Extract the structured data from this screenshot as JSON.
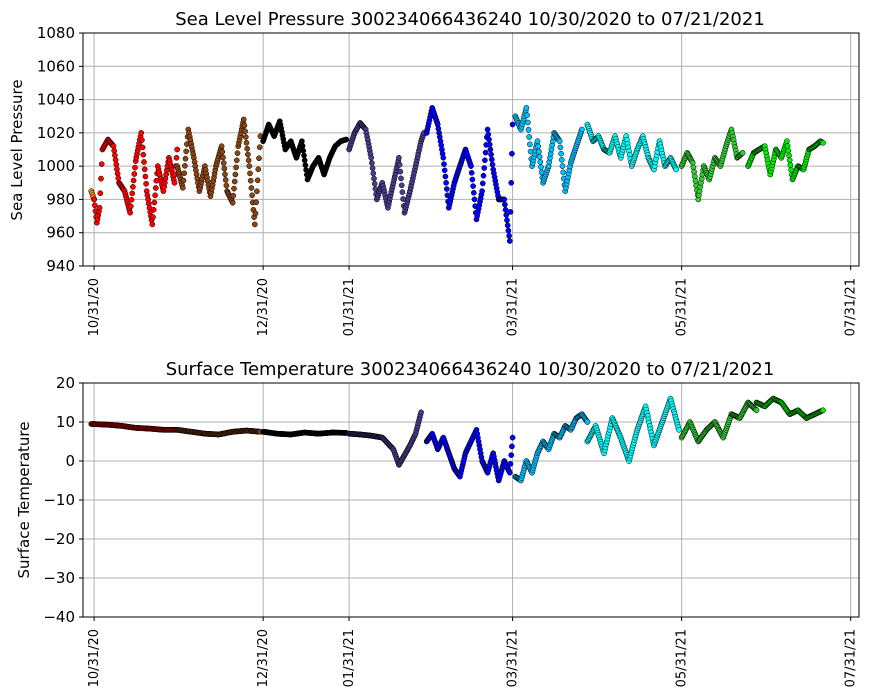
{
  "chart_data": [
    {
      "type": "scatter",
      "title": "Sea Level Pressure 300234066436240  10/30/2020 to 07/21/2021",
      "xlabel": "",
      "ylabel": "Sea Level Pressure",
      "x_range": [
        "2020-10-27",
        "2021-08-03"
      ],
      "ylim": [
        940,
        1080
      ],
      "yticks": [
        940,
        960,
        980,
        1000,
        1020,
        1040,
        1060,
        1080
      ],
      "xtick_dates": [
        "2020-10-31",
        "2020-12-31",
        "2021-01-31",
        "2021-03-31",
        "2021-05-31",
        "2021-07-31"
      ],
      "xtick_labels": [
        "10/31/20",
        "12/31/20",
        "01/31/21",
        "03/31/21",
        "05/31/21",
        "07/31/21"
      ],
      "grid": true,
      "legend": "none",
      "series": [
        {
          "color": "#ff8c00",
          "x": [
            "2020-10-30",
            "2020-10-31"
          ],
          "y": [
            985,
            980
          ]
        },
        {
          "color": "#ff0000",
          "x": [
            "2020-10-31",
            "2020-11-01",
            "2020-11-02",
            "2020-11-03",
            "2020-11-05",
            "2020-11-07",
            "2020-11-09",
            "2020-11-11",
            "2020-11-13",
            "2020-11-15",
            "2020-11-17",
            "2020-11-19",
            "2020-11-21",
            "2020-11-23",
            "2020-11-25",
            "2020-11-27",
            "2020-11-29",
            "2020-11-30"
          ],
          "y": [
            980,
            966,
            975,
            1010,
            1016,
            1012,
            990,
            985,
            972,
            1003,
            1020,
            985,
            965,
            1000,
            985,
            1005,
            990,
            1010
          ]
        },
        {
          "color": "#8b4513",
          "x": [
            "2020-11-30",
            "2020-12-02",
            "2020-12-04",
            "2020-12-06",
            "2020-12-08",
            "2020-12-10",
            "2020-12-12",
            "2020-12-14",
            "2020-12-16",
            "2020-12-18",
            "2020-12-20",
            "2020-12-22",
            "2020-12-24",
            "2020-12-26",
            "2020-12-28",
            "2020-12-30"
          ],
          "y": [
            1000,
            987,
            1022,
            1005,
            985,
            1000,
            982,
            1000,
            1012,
            985,
            978,
            1012,
            1028,
            1000,
            965,
            1018
          ]
        },
        {
          "color": "#000000",
          "x": [
            "2020-12-31",
            "2021-01-02",
            "2021-01-04",
            "2021-01-06",
            "2021-01-08",
            "2021-01-10",
            "2021-01-12",
            "2021-01-14",
            "2021-01-16",
            "2021-01-18",
            "2021-01-20",
            "2021-01-22",
            "2021-01-24",
            "2021-01-26",
            "2021-01-28",
            "2021-01-30"
          ],
          "y": [
            1015,
            1025,
            1018,
            1027,
            1010,
            1015,
            1005,
            1015,
            992,
            1000,
            1005,
            995,
            1005,
            1012,
            1015,
            1016
          ]
        },
        {
          "color": "#483d8b",
          "x": [
            "2021-01-31",
            "2021-02-02",
            "2021-02-04",
            "2021-02-06",
            "2021-02-08",
            "2021-02-10",
            "2021-02-12",
            "2021-02-14",
            "2021-02-16",
            "2021-02-18",
            "2021-02-20",
            "2021-02-22",
            "2021-02-24",
            "2021-02-26",
            "2021-02-27"
          ],
          "y": [
            1010,
            1020,
            1026,
            1022,
            1005,
            980,
            990,
            975,
            990,
            1005,
            972,
            985,
            1000,
            1015,
            1020
          ]
        },
        {
          "color": "#0000ff",
          "x": [
            "2021-02-28",
            "2021-03-02",
            "2021-03-04",
            "2021-03-06",
            "2021-03-08",
            "2021-03-10",
            "2021-03-12",
            "2021-03-14",
            "2021-03-16",
            "2021-03-18",
            "2021-03-20",
            "2021-03-22",
            "2021-03-24",
            "2021-03-26",
            "2021-03-28",
            "2021-03-30",
            "2021-03-31"
          ],
          "y": [
            1020,
            1035,
            1025,
            1005,
            975,
            990,
            1000,
            1010,
            1000,
            968,
            985,
            1022,
            998,
            980,
            980,
            955,
            1025
          ]
        },
        {
          "color": "#00bfff",
          "x": [
            "2021-04-01",
            "2021-04-03",
            "2021-04-05",
            "2021-04-07",
            "2021-04-09",
            "2021-04-11",
            "2021-04-13",
            "2021-04-15",
            "2021-04-17",
            "2021-04-19",
            "2021-04-21",
            "2021-04-23",
            "2021-04-25"
          ],
          "y": [
            1030,
            1022,
            1035,
            1000,
            1015,
            990,
            1000,
            1020,
            1015,
            985,
            1002,
            1012,
            1022
          ]
        },
        {
          "color": "#00ffff",
          "x": [
            "2021-04-27",
            "2021-04-29",
            "2021-05-01",
            "2021-05-03",
            "2021-05-05",
            "2021-05-07",
            "2021-05-09",
            "2021-05-11",
            "2021-05-13",
            "2021-05-15",
            "2021-05-17",
            "2021-05-19",
            "2021-05-21",
            "2021-05-23",
            "2021-05-25",
            "2021-05-27",
            "2021-05-29"
          ],
          "y": [
            1025,
            1015,
            1018,
            1010,
            1008,
            1018,
            1005,
            1018,
            1000,
            1010,
            1018,
            1005,
            998,
            1015,
            1000,
            1005,
            998
          ]
        },
        {
          "color": "#32cd32",
          "x": [
            "2021-05-31",
            "2021-06-02",
            "2021-06-04",
            "2021-06-06",
            "2021-06-08",
            "2021-06-10",
            "2021-06-12",
            "2021-06-14",
            "2021-06-16",
            "2021-06-18",
            "2021-06-20",
            "2021-06-22"
          ],
          "y": [
            1000,
            1008,
            1002,
            980,
            1000,
            992,
            1005,
            1000,
            1012,
            1022,
            1005,
            1008
          ]
        },
        {
          "color": "#00ee00",
          "x": [
            "2021-06-24",
            "2021-06-26",
            "2021-06-28",
            "2021-06-30",
            "2021-07-02",
            "2021-07-04",
            "2021-07-06",
            "2021-07-08",
            "2021-07-10",
            "2021-07-12",
            "2021-07-14",
            "2021-07-16",
            "2021-07-18",
            "2021-07-20",
            "2021-07-21"
          ],
          "y": [
            1000,
            1008,
            1010,
            1012,
            995,
            1010,
            1005,
            1015,
            992,
            1000,
            998,
            1010,
            1012,
            1015,
            1014
          ]
        }
      ]
    },
    {
      "type": "scatter",
      "title": "Surface Temperature 300234066436240  10/30/2020 to 07/21/2021",
      "xlabel": "",
      "ylabel": "Surface Temperature",
      "x_range": [
        "2020-10-27",
        "2021-08-03"
      ],
      "ylim": [
        -40,
        20
      ],
      "yticks": [
        -40,
        -30,
        -20,
        -10,
        0,
        10,
        20
      ],
      "xtick_dates": [
        "2020-10-31",
        "2020-12-31",
        "2021-01-31",
        "2021-03-31",
        "2021-05-31",
        "2021-07-31"
      ],
      "xtick_labels": [
        "10/31/20",
        "12/31/20",
        "01/31/21",
        "03/31/21",
        "05/31/21",
        "07/31/21"
      ],
      "grid": true,
      "legend": "none",
      "series": [
        {
          "color": "#ff0000",
          "x": [
            "2020-10-30",
            "2020-11-05",
            "2020-11-10",
            "2020-11-15",
            "2020-11-20",
            "2020-11-25",
            "2020-11-30"
          ],
          "y": [
            9.5,
            9.3,
            9.0,
            8.5,
            8.3,
            8.0,
            8.0
          ]
        },
        {
          "color": "#8b4513",
          "x": [
            "2020-11-30",
            "2020-12-05",
            "2020-12-10",
            "2020-12-15",
            "2020-12-20",
            "2020-12-25",
            "2020-12-30"
          ],
          "y": [
            8.0,
            7.5,
            7.0,
            6.8,
            7.5,
            7.8,
            7.5
          ]
        },
        {
          "color": "#000000",
          "x": [
            "2020-12-31",
            "2021-01-05",
            "2021-01-10",
            "2021-01-15",
            "2021-01-20",
            "2021-01-25",
            "2021-01-30"
          ],
          "y": [
            7.5,
            7.0,
            6.8,
            7.3,
            7.0,
            7.3,
            7.2
          ]
        },
        {
          "color": "#483d8b",
          "x": [
            "2021-01-31",
            "2021-02-04",
            "2021-02-08",
            "2021-02-12",
            "2021-02-16",
            "2021-02-18",
            "2021-02-20",
            "2021-02-22",
            "2021-02-24",
            "2021-02-26"
          ],
          "y": [
            7.0,
            6.8,
            6.5,
            6.0,
            3.0,
            -1.0,
            1.5,
            4.0,
            7.0,
            12.5
          ]
        },
        {
          "color": "#0000ff",
          "x": [
            "2021-02-28",
            "2021-03-02",
            "2021-03-04",
            "2021-03-06",
            "2021-03-08",
            "2021-03-10",
            "2021-03-12",
            "2021-03-14",
            "2021-03-16",
            "2021-03-18",
            "2021-03-20",
            "2021-03-22",
            "2021-03-24",
            "2021-03-26",
            "2021-03-28",
            "2021-03-30",
            "2021-03-31"
          ],
          "y": [
            5.0,
            7.0,
            3.0,
            6.0,
            2.0,
            -2.0,
            -4.0,
            2.0,
            5.0,
            8.0,
            0.0,
            -3.0,
            2.0,
            -5.0,
            0.0,
            -3.0,
            6.0
          ]
        },
        {
          "color": "#00bfff",
          "x": [
            "2021-04-01",
            "2021-04-03",
            "2021-04-05",
            "2021-04-07",
            "2021-04-09",
            "2021-04-11",
            "2021-04-13",
            "2021-04-15",
            "2021-04-17",
            "2021-04-19",
            "2021-04-21",
            "2021-04-23",
            "2021-04-25",
            "2021-04-27"
          ],
          "y": [
            -4.0,
            -5.0,
            0.0,
            -3.0,
            2.0,
            5.0,
            3.0,
            7.0,
            6.0,
            9.0,
            8.0,
            11.0,
            12.0,
            10.0
          ]
        },
        {
          "color": "#00ffff",
          "x": [
            "2021-04-27",
            "2021-04-30",
            "2021-05-03",
            "2021-05-06",
            "2021-05-09",
            "2021-05-12",
            "2021-05-15",
            "2021-05-18",
            "2021-05-21",
            "2021-05-24",
            "2021-05-27",
            "2021-05-30"
          ],
          "y": [
            5.0,
            9.0,
            2.0,
            11.0,
            6.0,
            0.0,
            8.0,
            14.0,
            4.0,
            10.0,
            16.0,
            8.0
          ]
        },
        {
          "color": "#32cd32",
          "x": [
            "2021-05-31",
            "2021-06-03",
            "2021-06-06",
            "2021-06-09",
            "2021-06-12",
            "2021-06-15",
            "2021-06-18",
            "2021-06-21",
            "2021-06-24",
            "2021-06-27"
          ],
          "y": [
            6.0,
            10.0,
            5.0,
            8.0,
            10.0,
            6.0,
            12.0,
            11.0,
            15.0,
            13.0
          ]
        },
        {
          "color": "#00ee00",
          "x": [
            "2021-06-27",
            "2021-06-30",
            "2021-07-03",
            "2021-07-06",
            "2021-07-09",
            "2021-07-12",
            "2021-07-15",
            "2021-07-18",
            "2021-07-21"
          ],
          "y": [
            15.0,
            14.0,
            16.0,
            15.0,
            12.0,
            13.0,
            11.0,
            12.0,
            13.0
          ]
        }
      ]
    }
  ]
}
